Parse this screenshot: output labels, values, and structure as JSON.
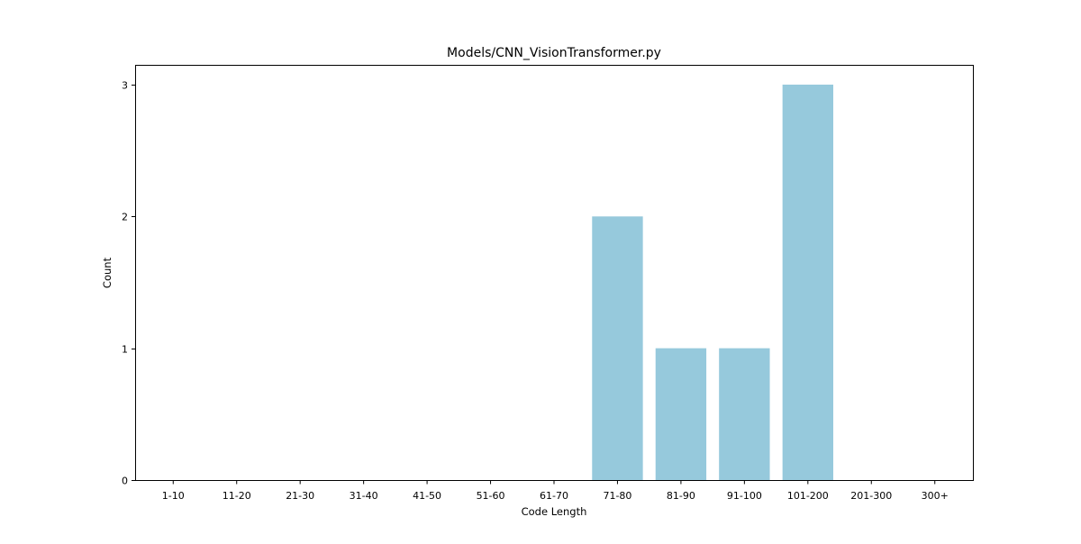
{
  "chart_data": {
    "type": "bar",
    "title": "Models/CNN_VisionTransformer.py",
    "xlabel": "Code Length",
    "ylabel": "Count",
    "categories": [
      "1-10",
      "11-20",
      "21-30",
      "31-40",
      "41-50",
      "51-60",
      "61-70",
      "71-80",
      "81-90",
      "91-100",
      "101-200",
      "201-300",
      "300+"
    ],
    "values": [
      0,
      0,
      0,
      0,
      0,
      0,
      0,
      2,
      1,
      1,
      3,
      0,
      0
    ],
    "ylim": [
      0,
      3.15
    ],
    "yticks": [
      "0",
      "1",
      "2",
      "3"
    ],
    "bar_color": "#96c9dc",
    "grid": false,
    "legend": "none"
  }
}
